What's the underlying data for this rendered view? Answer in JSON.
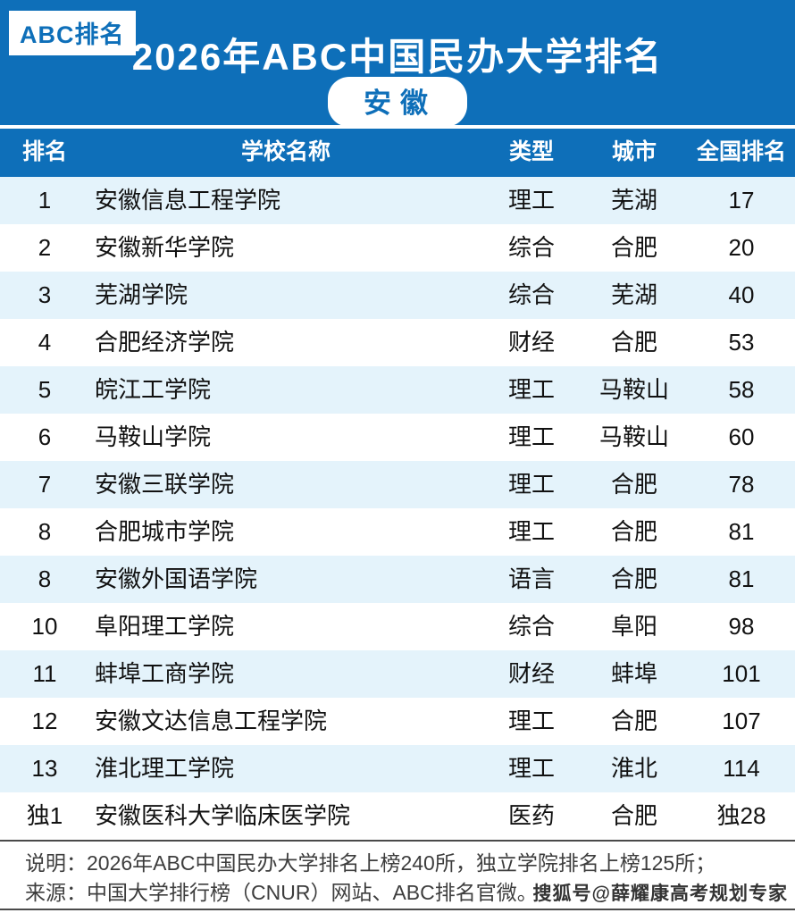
{
  "brand": {
    "badge": "ABC排名"
  },
  "header": {
    "title": "2026年ABC中国民办大学排名",
    "region": "安徽"
  },
  "table": {
    "columns": [
      "排名",
      "学校名称",
      "类型",
      "城市",
      "全国排名"
    ],
    "rows": [
      [
        "1",
        "安徽信息工程学院",
        "理工",
        "芜湖",
        "17"
      ],
      [
        "2",
        "安徽新华学院",
        "综合",
        "合肥",
        "20"
      ],
      [
        "3",
        "芜湖学院",
        "综合",
        "芜湖",
        "40"
      ],
      [
        "4",
        "合肥经济学院",
        "财经",
        "合肥",
        "53"
      ],
      [
        "5",
        "皖江工学院",
        "理工",
        "马鞍山",
        "58"
      ],
      [
        "6",
        "马鞍山学院",
        "理工",
        "马鞍山",
        "60"
      ],
      [
        "7",
        "安徽三联学院",
        "理工",
        "合肥",
        "78"
      ],
      [
        "8",
        "合肥城市学院",
        "理工",
        "合肥",
        "81"
      ],
      [
        "8",
        "安徽外国语学院",
        "语言",
        "合肥",
        "81"
      ],
      [
        "10",
        "阜阳理工学院",
        "综合",
        "阜阳",
        "98"
      ],
      [
        "11",
        "蚌埠工商学院",
        "财经",
        "蚌埠",
        "101"
      ],
      [
        "12",
        "安徽文达信息工程学院",
        "理工",
        "合肥",
        "107"
      ],
      [
        "13",
        "淮北理工学院",
        "理工",
        "淮北",
        "114"
      ],
      [
        "独1",
        "安徽医科大学临床医学院",
        "医药",
        "合肥",
        "独28"
      ]
    ]
  },
  "footer": {
    "note": "说明：2026年ABC中国民办大学排名上榜240所，独立学院排名上榜125所；",
    "source": "来源：中国大学排行榜（CNUR）网站、ABC排名官微。",
    "watermark": "搜狐号@薛耀康高考规划专家"
  },
  "colors": {
    "primary_blue": "#0E6FB9",
    "row_alt_blue": "#E4F3FB",
    "footer_line": "#4A4A4A",
    "text_dark": "#111111"
  }
}
